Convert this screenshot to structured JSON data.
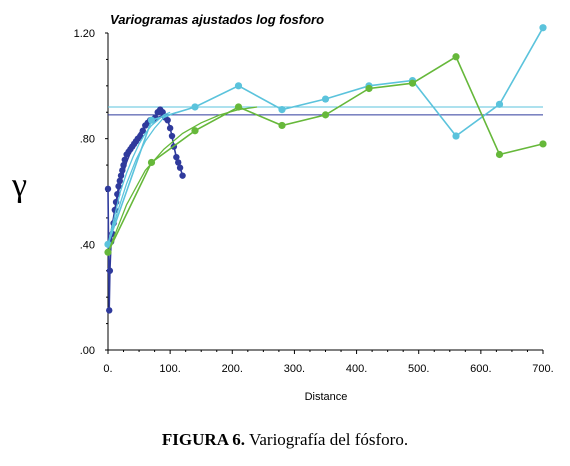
{
  "chart_data": {
    "type": "line",
    "title": "Variogramas ajustados log fosforo",
    "xlabel": "Distance",
    "ylabel": "γ",
    "xlim": [
      0,
      700
    ],
    "ylim": [
      0,
      1.2
    ],
    "xticks": [
      0,
      100,
      200,
      300,
      400,
      500,
      600,
      700
    ],
    "xtick_labels": [
      "0.",
      "100.",
      "200.",
      "300.",
      "400.",
      "500.",
      "600.",
      "700."
    ],
    "yticks": [
      0,
      0.4,
      0.8,
      1.2
    ],
    "ytick_labels": [
      ".00",
      ".40",
      ".80",
      "1.20"
    ],
    "grid": false,
    "colors": {
      "dark_blue": "#2f3a9c",
      "light_blue": "#5bc3dc",
      "green": "#66b83a",
      "sill_dark": "#2f3a9c",
      "sill_light": "#5bc3dc"
    },
    "series": [
      {
        "color": "dark_blue",
        "kind": "experimental",
        "points": [
          [
            0,
            0.61
          ],
          [
            2,
            0.15
          ],
          [
            3,
            0.3
          ],
          [
            5,
            0.41
          ],
          [
            7,
            0.44
          ],
          [
            9,
            0.48
          ],
          [
            11,
            0.53
          ],
          [
            13,
            0.56
          ],
          [
            15,
            0.59
          ],
          [
            17,
            0.62
          ],
          [
            19,
            0.64
          ],
          [
            21,
            0.66
          ],
          [
            23,
            0.68
          ],
          [
            25,
            0.7
          ],
          [
            27,
            0.72
          ],
          [
            30,
            0.74
          ],
          [
            33,
            0.75
          ],
          [
            36,
            0.76
          ],
          [
            39,
            0.77
          ],
          [
            42,
            0.78
          ],
          [
            45,
            0.79
          ],
          [
            48,
            0.8
          ],
          [
            52,
            0.81
          ],
          [
            56,
            0.83
          ],
          [
            60,
            0.85
          ],
          [
            64,
            0.86
          ],
          [
            68,
            0.87
          ],
          [
            72,
            0.87
          ],
          [
            76,
            0.88
          ],
          [
            80,
            0.9
          ],
          [
            84,
            0.91
          ],
          [
            88,
            0.9
          ],
          [
            92,
            0.88
          ],
          [
            96,
            0.87
          ],
          [
            100,
            0.84
          ],
          [
            103,
            0.81
          ],
          [
            106,
            0.77
          ],
          [
            110,
            0.73
          ],
          [
            113,
            0.71
          ],
          [
            116,
            0.69
          ],
          [
            120,
            0.66
          ]
        ]
      },
      {
        "color": "dark_blue",
        "kind": "model",
        "points": [
          [
            0,
            0.38
          ],
          [
            10,
            0.52
          ],
          [
            20,
            0.63
          ],
          [
            30,
            0.71
          ],
          [
            40,
            0.77
          ],
          [
            50,
            0.82
          ],
          [
            60,
            0.85
          ],
          [
            70,
            0.87
          ],
          [
            80,
            0.88
          ],
          [
            90,
            0.89
          ],
          [
            100,
            0.89
          ]
        ]
      },
      {
        "color": "light_blue",
        "kind": "experimental",
        "points": [
          [
            0,
            0.4
          ],
          [
            70,
            0.87
          ],
          [
            140,
            0.92
          ],
          [
            210,
            1.0
          ],
          [
            280,
            0.91
          ],
          [
            350,
            0.95
          ],
          [
            420,
            1.0
          ],
          [
            490,
            1.02
          ],
          [
            560,
            0.81
          ],
          [
            630,
            0.93
          ],
          [
            700,
            1.22
          ]
        ]
      },
      {
        "color": "light_blue",
        "kind": "model",
        "points": [
          [
            0,
            0.4
          ],
          [
            10,
            0.5
          ],
          [
            20,
            0.6
          ],
          [
            30,
            0.67
          ],
          [
            40,
            0.73
          ],
          [
            50,
            0.78
          ],
          [
            60,
            0.82
          ],
          [
            70,
            0.85
          ],
          [
            80,
            0.87
          ],
          [
            90,
            0.89
          ],
          [
            100,
            0.9
          ]
        ]
      },
      {
        "color": "light_blue",
        "kind": "model",
        "points": [
          [
            0,
            0.4
          ],
          [
            15,
            0.52
          ],
          [
            30,
            0.63
          ],
          [
            45,
            0.72
          ],
          [
            60,
            0.79
          ],
          [
            75,
            0.84
          ],
          [
            90,
            0.88
          ],
          [
            110,
            0.9
          ]
        ]
      },
      {
        "color": "green",
        "kind": "experimental",
        "points": [
          [
            0,
            0.37
          ],
          [
            70,
            0.71
          ],
          [
            140,
            0.83
          ],
          [
            210,
            0.92
          ],
          [
            280,
            0.85
          ],
          [
            350,
            0.89
          ],
          [
            420,
            0.99
          ],
          [
            490,
            1.01
          ],
          [
            560,
            1.11
          ],
          [
            630,
            0.74
          ],
          [
            700,
            0.78
          ]
        ]
      },
      {
        "color": "green",
        "kind": "model",
        "points": [
          [
            0,
            0.37
          ],
          [
            30,
            0.55
          ],
          [
            60,
            0.68
          ],
          [
            90,
            0.76
          ],
          [
            120,
            0.82
          ],
          [
            150,
            0.86
          ],
          [
            180,
            0.89
          ],
          [
            210,
            0.91
          ],
          [
            240,
            0.92
          ]
        ]
      }
    ],
    "sills": [
      {
        "color": "sill_dark",
        "y": 0.89
      },
      {
        "color": "sill_light",
        "y": 0.92
      }
    ]
  },
  "caption": {
    "label": "FIGURA 6.",
    "text": " Variografía del fósforo."
  }
}
